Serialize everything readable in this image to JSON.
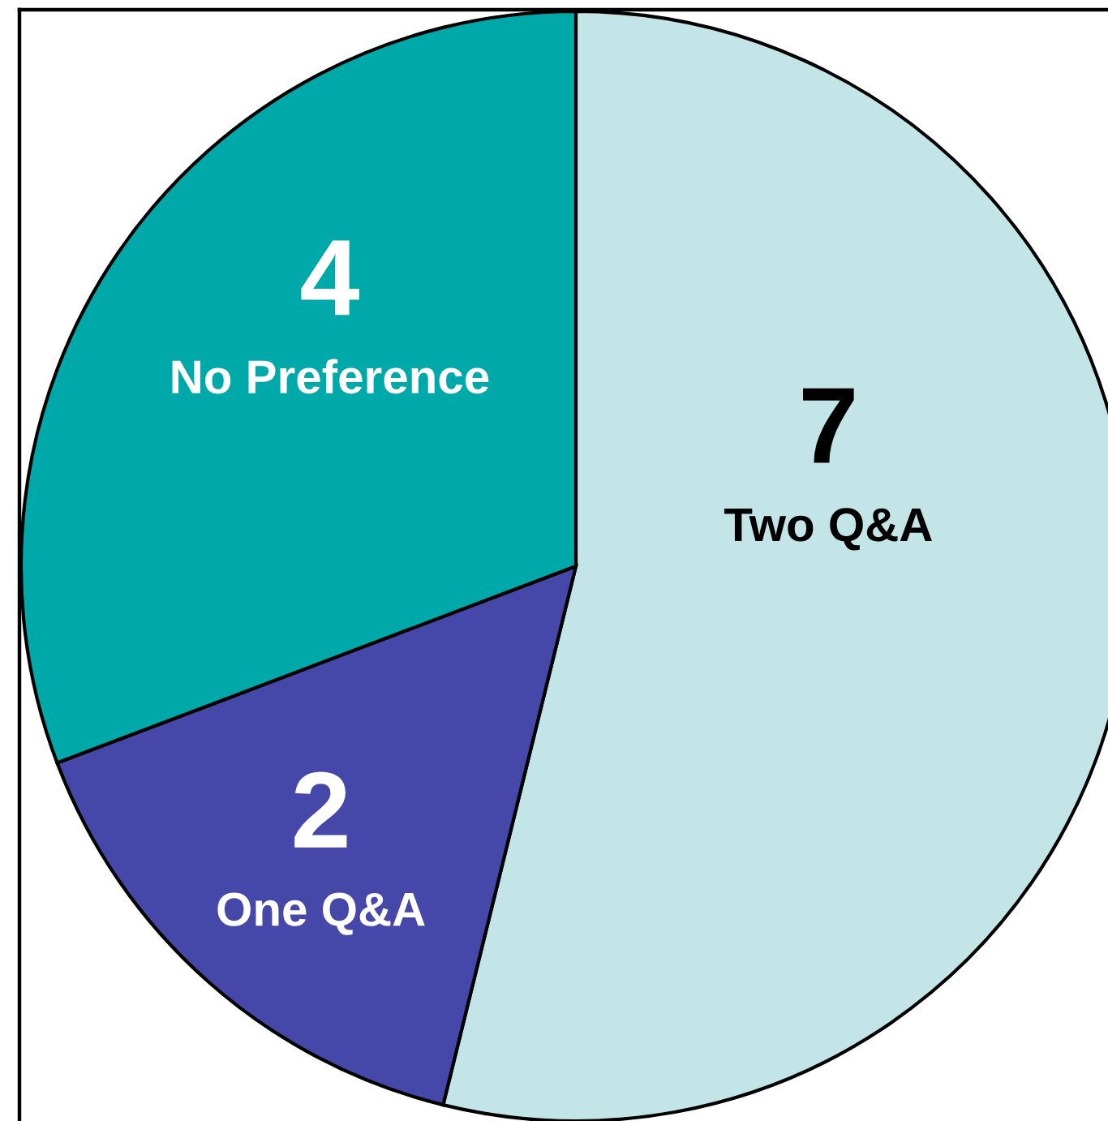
{
  "chart_data": {
    "type": "pie",
    "categories": [
      "Two Q&A",
      "One Q&A",
      "No Preference"
    ],
    "values": [
      7,
      2,
      4
    ],
    "colors": [
      "#c4e5e7",
      "#4548a8",
      "#00a9a9"
    ],
    "data_labels": true
  }
}
